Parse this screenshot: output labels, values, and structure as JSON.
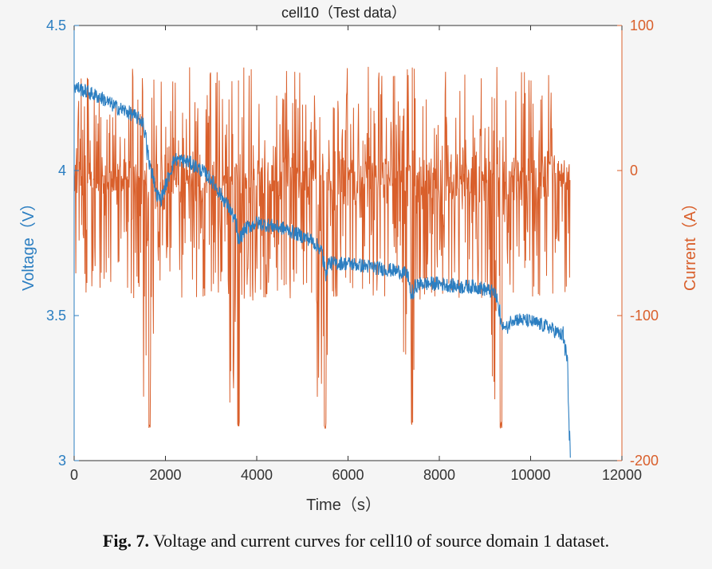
{
  "chart_data": {
    "type": "line",
    "title": "cell10（Test data）",
    "xlabel": "Time（s）",
    "ylabel_left": "Voltage（V）",
    "ylabel_right": "Current（A）",
    "xlim": [
      0,
      12000
    ],
    "ylim_left": [
      3,
      4.5
    ],
    "ylim_right": [
      -200,
      100
    ],
    "x_ticks": [
      "0",
      "2000",
      "4000",
      "6000",
      "8000",
      "10000",
      "12000"
    ],
    "y_left_ticks": [
      "3",
      "3.5",
      "4",
      "4.5"
    ],
    "y_right_ticks": [
      "-200",
      "-100",
      "0",
      "100"
    ],
    "grid": false,
    "colors": {
      "voltage": "#2b7ec1",
      "current": "#d95f2b",
      "axis": "#333333"
    },
    "series": [
      {
        "axis": "left",
        "x": [
          0,
          300,
          600,
          900,
          1200,
          1500,
          1650,
          1800,
          1900,
          2200,
          2500,
          2800,
          3000,
          3200,
          3400,
          3550,
          3650,
          3750,
          4000,
          4300,
          4600,
          4900,
          5200,
          5400,
          5500,
          5600,
          6000,
          6400,
          6800,
          7200,
          7350,
          7450,
          7600,
          8000,
          8400,
          8800,
          9200,
          9350,
          9450,
          9600,
          10000,
          10400,
          10700,
          10800,
          10870
        ],
        "values": [
          4.29,
          4.27,
          4.25,
          4.22,
          4.2,
          4.17,
          4.05,
          3.92,
          3.9,
          4.04,
          4.03,
          4.0,
          3.97,
          3.92,
          3.87,
          3.82,
          3.77,
          3.8,
          3.82,
          3.81,
          3.8,
          3.78,
          3.76,
          3.73,
          3.69,
          3.68,
          3.68,
          3.67,
          3.66,
          3.65,
          3.63,
          3.6,
          3.61,
          3.61,
          3.6,
          3.6,
          3.58,
          3.52,
          3.45,
          3.49,
          3.48,
          3.46,
          3.43,
          3.35,
          3.01
        ]
      },
      {
        "axis": "right",
        "x": [
          0,
          1650,
          1750,
          3600,
          3700,
          5500,
          5600,
          7400,
          7500,
          9350,
          9450,
          10870
        ],
        "values": [
          0,
          -178,
          0,
          -175,
          0,
          -178,
          0,
          -178,
          0,
          -178,
          0,
          -75
        ],
        "note_range": [
          -180,
          72
        ]
      }
    ]
  },
  "caption": {
    "label": "Fig. 7.",
    "text": " Voltage and current curves for cell10 of source domain 1 dataset."
  }
}
